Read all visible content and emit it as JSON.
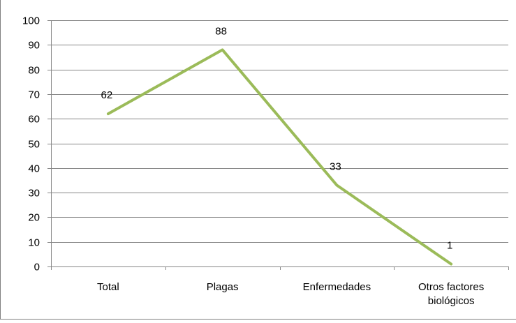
{
  "chart_data": {
    "type": "line",
    "categories": [
      "Total",
      "Plagas",
      "Enfermedades",
      "Otros factores biológicos"
    ],
    "category_lines": [
      [
        "Total"
      ],
      [
        "Plagas"
      ],
      [
        "Enfermedades"
      ],
      [
        "Otros factores",
        "biológicos"
      ]
    ],
    "series": [
      {
        "values": [
          62,
          88,
          33,
          1
        ],
        "color": "#9bbb59"
      }
    ],
    "data_labels": [
      "62",
      "88",
      "33",
      "1"
    ],
    "ylim": [
      0,
      100
    ],
    "yticks": [
      0,
      10,
      20,
      30,
      40,
      50,
      60,
      70,
      80,
      90,
      100
    ],
    "grid": true,
    "legend": "none",
    "colors": {
      "grid": "#868686",
      "axis": "#868686",
      "text": "#000000"
    }
  }
}
